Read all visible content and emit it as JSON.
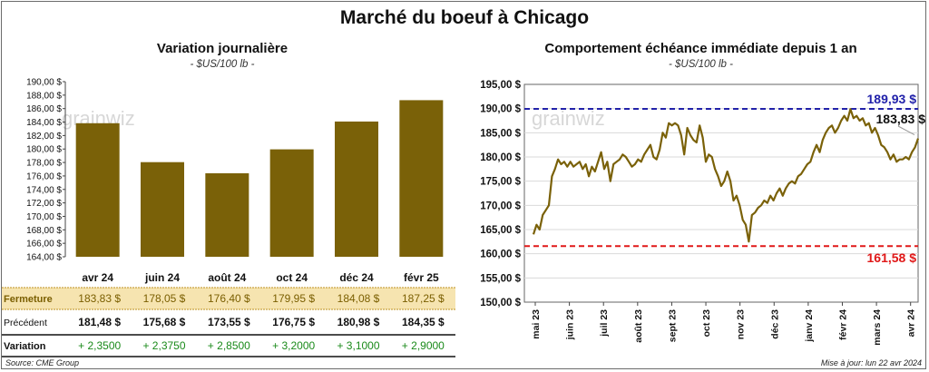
{
  "title": "Marché du boeuf à Chicago",
  "left": {
    "title": "Variation journalière",
    "unit": "- $US/100 lb -",
    "watermark": "grainwiz",
    "bar_color": "#7a6108",
    "table": {
      "rows": [
        {
          "label": "Fermeture",
          "values": [
            "183,83 $",
            "178,05 $",
            "176,40 $",
            "179,95 $",
            "184,08 $",
            "187,25 $"
          ],
          "highlight": true
        },
        {
          "label": "Précédent",
          "values": [
            "181,48 $",
            "175,68 $",
            "173,55 $",
            "176,75 $",
            "180,98 $",
            "184,35 $"
          ],
          "highlight": false
        },
        {
          "label": "Variation",
          "values": [
            "+ 2,3500",
            "+ 2,3750",
            "+ 2,8500",
            "+ 3,2000",
            "+ 3,1000",
            "+ 2,9000"
          ],
          "highlight": false
        }
      ]
    }
  },
  "right": {
    "title": "Comportement  échéance immédiate depuis 1 an",
    "unit": "- $US/100 lb -",
    "watermark": "grainwiz",
    "high_label": "189,93 $",
    "low_label": "161,58 $",
    "last_label": "183,83 $",
    "line_color": "#7a6108",
    "high_color": "#2222aa",
    "low_color": "#e01818"
  },
  "footer": {
    "source": "Source: CME Group",
    "updated": "Mise à jour: lun 22 avr 2024"
  },
  "chart_data": [
    {
      "type": "bar",
      "title": "Variation journalière",
      "categories": [
        "avr 24",
        "juin 24",
        "août 24",
        "oct 24",
        "déc 24",
        "févr 25"
      ],
      "values": [
        183.83,
        178.05,
        176.4,
        179.95,
        184.08,
        187.25
      ],
      "ylim": [
        164,
        190
      ],
      "yticks": [
        "164,00 $",
        "166,00 $",
        "168,00 $",
        "170,00 $",
        "172,00 $",
        "174,00 $",
        "176,00 $",
        "178,00 $",
        "180,00 $",
        "182,00 $",
        "184,00 $",
        "186,00 $",
        "188,00 $",
        "190,00 $"
      ],
      "grid": false
    },
    {
      "type": "line",
      "title": "Comportement  échéance immédiate depuis 1 an",
      "ylim": [
        150,
        195
      ],
      "yticks": [
        "150,00 $",
        "155,00 $",
        "160,00 $",
        "165,00 $",
        "170,00 $",
        "175,00 $",
        "180,00 $",
        "185,00 $",
        "190,00 $",
        "195,00 $"
      ],
      "xticks": [
        "mai 23",
        "juin 23",
        "juil 23",
        "août 23",
        "sept 23",
        "oct 23",
        "nov 23",
        "déc 23",
        "janv 24",
        "févr 24",
        "mars 24",
        "avr 24"
      ],
      "reference_lines": [
        {
          "name": "max",
          "value": 189.93
        },
        {
          "name": "min",
          "value": 161.58
        }
      ],
      "grid": true,
      "x": [
        0,
        2,
        4,
        6,
        8,
        10,
        12,
        14,
        16,
        18,
        20,
        22,
        24,
        26,
        28,
        30,
        32,
        34,
        36,
        38,
        40,
        42,
        44,
        46,
        48,
        50,
        52,
        54,
        56,
        58,
        60,
        62,
        64,
        66,
        68,
        70,
        72,
        74,
        76,
        78,
        80,
        82,
        84,
        86,
        88,
        90,
        92,
        94,
        96,
        98,
        100,
        102,
        104,
        106,
        108,
        110,
        112,
        114,
        116,
        118,
        120,
        122,
        124,
        126,
        128,
        130,
        132,
        134,
        136,
        138,
        140,
        142,
        144,
        146,
        148,
        150,
        152,
        154,
        156,
        158,
        160,
        162,
        164,
        166,
        168,
        170,
        172,
        174,
        176,
        178,
        180,
        182,
        184,
        186,
        188,
        190,
        192,
        194,
        196,
        198,
        200,
        202,
        204,
        206,
        208,
        210,
        212,
        214,
        216,
        218,
        220,
        222,
        224,
        226,
        228,
        230,
        232,
        234,
        236,
        238,
        240,
        242,
        244,
        246,
        248,
        250
      ],
      "y": [
        164.0,
        166.0,
        165.0,
        168.0,
        169.0,
        170.0,
        176.0,
        177.5,
        179.5,
        178.5,
        179.0,
        178.0,
        179.0,
        178.0,
        178.5,
        179.0,
        177.5,
        178.5,
        176.0,
        178.0,
        177.0,
        179.0,
        181.0,
        177.5,
        179.0,
        175.0,
        178.5,
        179.0,
        179.5,
        180.5,
        180.0,
        179.0,
        178.0,
        178.5,
        179.5,
        179.0,
        180.5,
        181.5,
        182.5,
        180.0,
        179.5,
        181.5,
        185.0,
        184.0,
        187.0,
        186.5,
        187.0,
        186.5,
        184.5,
        180.5,
        186.0,
        184.5,
        183.5,
        183.0,
        186.5,
        184.0,
        179.0,
        180.5,
        180.0,
        177.5,
        176.0,
        174.0,
        175.0,
        177.0,
        175.0,
        171.0,
        172.0,
        170.0,
        167.0,
        166.0,
        162.5,
        168.0,
        168.5,
        169.5,
        170.0,
        171.0,
        170.5,
        172.0,
        171.0,
        172.5,
        173.5,
        172.0,
        173.5,
        174.5,
        175.0,
        174.5,
        176.0,
        176.5,
        177.5,
        178.5,
        179.0,
        181.0,
        182.5,
        181.0,
        183.5,
        185.0,
        186.0,
        186.5,
        185.0,
        186.0,
        187.5,
        188.5,
        187.5,
        189.9,
        188.0,
        188.5,
        187.5,
        188.0,
        186.5,
        187.0,
        185.0,
        186.0,
        184.5,
        182.5,
        182.0,
        181.0,
        179.5,
        180.5,
        179.0,
        179.5,
        179.5,
        180.0,
        179.5,
        181.0,
        182.0,
        183.83
      ]
    }
  ]
}
